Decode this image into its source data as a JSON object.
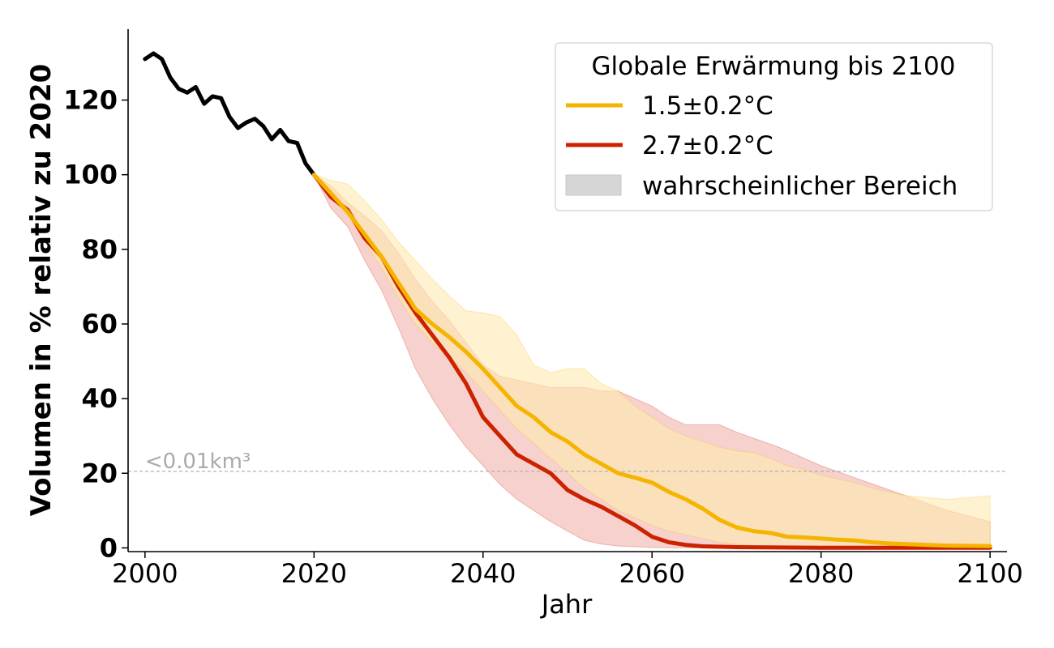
{
  "chart_data": {
    "type": "line",
    "xlabel": "Jahr",
    "ylabel": "Volumen in % relativ zu 2020",
    "xlim": [
      1998,
      2102
    ],
    "ylim": [
      -1,
      139
    ],
    "x_ticks": [
      2000,
      2020,
      2040,
      2060,
      2080,
      2100
    ],
    "y_ticks": [
      0,
      20,
      40,
      60,
      80,
      100,
      120
    ],
    "grid": false,
    "legend": {
      "title": "Globale Erwärmung bis 2100",
      "position": "top-right",
      "entries": [
        {
          "label": "1.5±0.2°C",
          "color": "#f5b400",
          "kind": "line"
        },
        {
          "label": "2.7±0.2°C",
          "color": "#cc2200",
          "kind": "line"
        },
        {
          "label": "wahrscheinlicher Bereich",
          "color": "#d6d6d6",
          "kind": "patch"
        }
      ]
    },
    "reference_line": {
      "y": 20.5,
      "label": "<0.01km³",
      "color": "#aaaaaa"
    },
    "historical": {
      "color": "#000000",
      "x": [
        2000,
        2001,
        2002,
        2003,
        2004,
        2005,
        2006,
        2007,
        2008,
        2009,
        2010,
        2011,
        2012,
        2013,
        2014,
        2015,
        2016,
        2017,
        2018,
        2019,
        2020
      ],
      "y": [
        131,
        132.5,
        131,
        126,
        123,
        122,
        123.5,
        119,
        121,
        120.5,
        115.5,
        112.5,
        114,
        115,
        113,
        109.5,
        112,
        109,
        108.5,
        103,
        100
      ]
    },
    "series": [
      {
        "name": "1.5±0.2°C",
        "color": "#f5b400",
        "band_color": "#ffe9b0",
        "x": [
          2020,
          2022,
          2024,
          2026,
          2028,
          2030,
          2032,
          2034,
          2036,
          2038,
          2040,
          2042,
          2044,
          2046,
          2048,
          2050,
          2052,
          2054,
          2056,
          2058,
          2060,
          2062,
          2064,
          2066,
          2068,
          2070,
          2072,
          2074,
          2076,
          2078,
          2080,
          2082,
          2084,
          2086,
          2088,
          2090,
          2095,
          2100
        ],
        "y": [
          100,
          95,
          90,
          84,
          78,
          71,
          64,
          60,
          56.5,
          52.5,
          48,
          43,
          38,
          35,
          31,
          28.5,
          25,
          22.5,
          20,
          18.8,
          17.5,
          15,
          13,
          10.5,
          7.5,
          5.5,
          4.5,
          4,
          3,
          2.8,
          2.5,
          2.2,
          2,
          1.5,
          1.2,
          1,
          0.6,
          0.5
        ],
        "lower": [
          100,
          94,
          89,
          82,
          75,
          67,
          60,
          55,
          51,
          47,
          42,
          37,
          32,
          28,
          24,
          20,
          16,
          13,
          10,
          8,
          6,
          4.5,
          3.5,
          2.5,
          1.5,
          1,
          0.6,
          0.4,
          0.3,
          0.2,
          0.2,
          0.1,
          0.1,
          0,
          0,
          0,
          0,
          0
        ],
        "upper": [
          100,
          98.5,
          97.5,
          93,
          88,
          82,
          77,
          72,
          67.5,
          63.5,
          63,
          62,
          57,
          49,
          47,
          48,
          48,
          44,
          42,
          38,
          35,
          32,
          30,
          28.5,
          27,
          26,
          25.5,
          24,
          22,
          21,
          19.5,
          18.5,
          17.5,
          16,
          15,
          14,
          13,
          14
        ]
      },
      {
        "name": "2.7±0.2°C",
        "color": "#cc2200",
        "band_color": "#f0b3ab",
        "x": [
          2020,
          2022,
          2024,
          2026,
          2028,
          2030,
          2032,
          2034,
          2036,
          2038,
          2040,
          2042,
          2044,
          2046,
          2048,
          2050,
          2052,
          2054,
          2056,
          2058,
          2060,
          2062,
          2064,
          2066,
          2068,
          2070,
          2075,
          2080,
          2085,
          2090,
          2095,
          2100
        ],
        "y": [
          100,
          94,
          90.5,
          83,
          78,
          70,
          63,
          57,
          51,
          44,
          35,
          30,
          25,
          22.5,
          20,
          15.5,
          13,
          11,
          8.5,
          6,
          3,
          1.5,
          0.8,
          0.4,
          0.3,
          0.2,
          0.1,
          0.05,
          0.05,
          0.05,
          0.05,
          0.05
        ],
        "lower": [
          100,
          91,
          86,
          77,
          69,
          59,
          48,
          40,
          33,
          27,
          22,
          17,
          13,
          10,
          7,
          4.5,
          2,
          1,
          0.5,
          0.3,
          0.1,
          0,
          0,
          0,
          0,
          0,
          0,
          0,
          0,
          0,
          0,
          0
        ],
        "upper": [
          100,
          97,
          92.5,
          89,
          85,
          79,
          72,
          66,
          61,
          55,
          49,
          46,
          45,
          44,
          43,
          43,
          43,
          42,
          42,
          40,
          38,
          35,
          33,
          33,
          33,
          31,
          27,
          22,
          18,
          14,
          10,
          7
        ]
      }
    ]
  }
}
